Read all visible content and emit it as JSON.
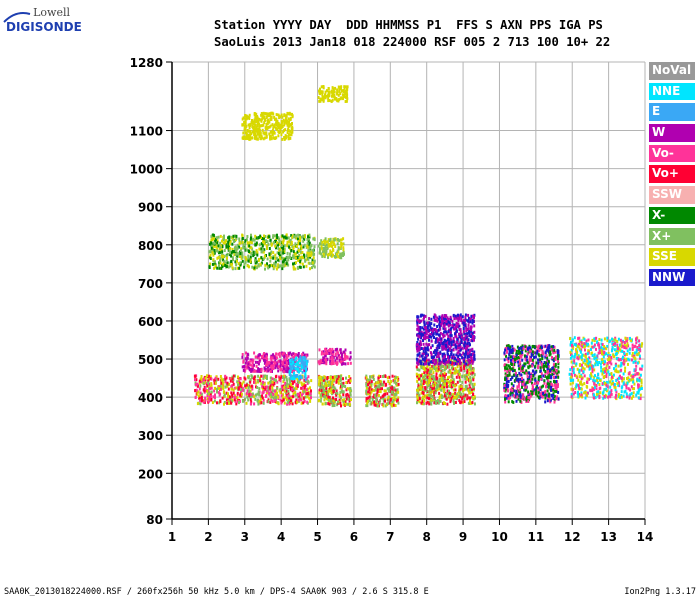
{
  "logo": {
    "line1": "Lowell",
    "line2": "DIGISONDE"
  },
  "header": {
    "line1": "Station YYYY DAY  DDD HHMMSS P1  FFS S AXN PPS IGA PS",
    "line2": "SaoLuis 2013 Jan18 018 224000 RSF 005 2 713 100 10+ 22"
  },
  "footer": {
    "left": "SAA0K_2013018224000.RSF / 260fx256h 50 kHz 5.0 km / DPS-4 SAA0K 903 / 2.6 S 315.8 E",
    "right": "Ion2Png 1.3.17"
  },
  "legend": [
    {
      "label": "NoVal",
      "color": "#999999"
    },
    {
      "label": "NNE",
      "color": "#00e5ff"
    },
    {
      "label": "E",
      "color": "#3aa8f5"
    },
    {
      "label": "W",
      "color": "#b000b0"
    },
    {
      "label": "Vo-",
      "color": "#ff3399"
    },
    {
      "label": "Vo+",
      "color": "#ff0033"
    },
    {
      "label": "SSW",
      "color": "#f7b0b0"
    },
    {
      "label": "X-",
      "color": "#008800"
    },
    {
      "label": "X+",
      "color": "#80c060"
    },
    {
      "label": "SSE",
      "color": "#d8d800"
    },
    {
      "label": "NNW",
      "color": "#1a1acc"
    }
  ],
  "chart_data": {
    "type": "scatter",
    "title": "",
    "xlabel": "",
    "ylabel": "",
    "xlim": [
      1,
      14
    ],
    "ylim": [
      80,
      1280
    ],
    "x_ticks": [
      "1",
      "2",
      "3",
      "4",
      "5",
      "6",
      "7",
      "8",
      "9",
      "10",
      "11",
      "12",
      "13",
      "14"
    ],
    "y_ticks": [
      "80",
      "200",
      "300",
      "400",
      "500",
      "600",
      "700",
      "800",
      "900",
      "1000",
      "1100",
      "1280"
    ],
    "series_by_color": [
      "NoVal",
      "NNE",
      "E",
      "W",
      "Vo-",
      "Vo+",
      "SSW",
      "X-",
      "X+",
      "SSE",
      "NNW"
    ],
    "clusters": [
      {
        "x": [
          1.6,
          4.8
        ],
        "y": [
          385,
          460
        ],
        "dominant": [
          "Vo+",
          "Vo-",
          "X+",
          "SSE"
        ]
      },
      {
        "x": [
          2.9,
          4.7
        ],
        "y": [
          470,
          520
        ],
        "dominant": [
          "Vo-",
          "W"
        ]
      },
      {
        "x": [
          4.2,
          4.7
        ],
        "y": [
          450,
          510
        ],
        "dominant": [
          "E",
          "NNE"
        ]
      },
      {
        "x": [
          2.0,
          4.9
        ],
        "y": [
          740,
          830
        ],
        "dominant": [
          "SSE",
          "X-",
          "X+"
        ]
      },
      {
        "x": [
          2.9,
          4.3
        ],
        "y": [
          1080,
          1150
        ],
        "dominant": [
          "SSE"
        ]
      },
      {
        "x": [
          5.0,
          5.9
        ],
        "y": [
          380,
          460
        ],
        "dominant": [
          "X+",
          "SSE",
          "Vo+"
        ]
      },
      {
        "x": [
          5.0,
          5.9
        ],
        "y": [
          490,
          530
        ],
        "dominant": [
          "W",
          "Vo-"
        ]
      },
      {
        "x": [
          5.0,
          5.7
        ],
        "y": [
          770,
          820
        ],
        "dominant": [
          "SSE",
          "X+"
        ]
      },
      {
        "x": [
          5.0,
          5.8
        ],
        "y": [
          1180,
          1220
        ],
        "dominant": [
          "SSE"
        ]
      },
      {
        "x": [
          6.3,
          7.2
        ],
        "y": [
          380,
          460
        ],
        "dominant": [
          "X+",
          "SSE",
          "Vo+"
        ]
      },
      {
        "x": [
          7.7,
          9.3
        ],
        "y": [
          385,
          500
        ],
        "dominant": [
          "SSE",
          "Vo+",
          "X+"
        ]
      },
      {
        "x": [
          7.7,
          9.3
        ],
        "y": [
          490,
          620
        ],
        "dominant": [
          "W",
          "NNW"
        ]
      },
      {
        "x": [
          10.1,
          11.6
        ],
        "y": [
          390,
          540
        ],
        "dominant": [
          "Vo-",
          "X-",
          "NNW"
        ]
      },
      {
        "x": [
          11.9,
          13.9
        ],
        "y": [
          400,
          560
        ],
        "dominant": [
          "NNE",
          "SSE",
          "Vo-"
        ]
      }
    ]
  }
}
